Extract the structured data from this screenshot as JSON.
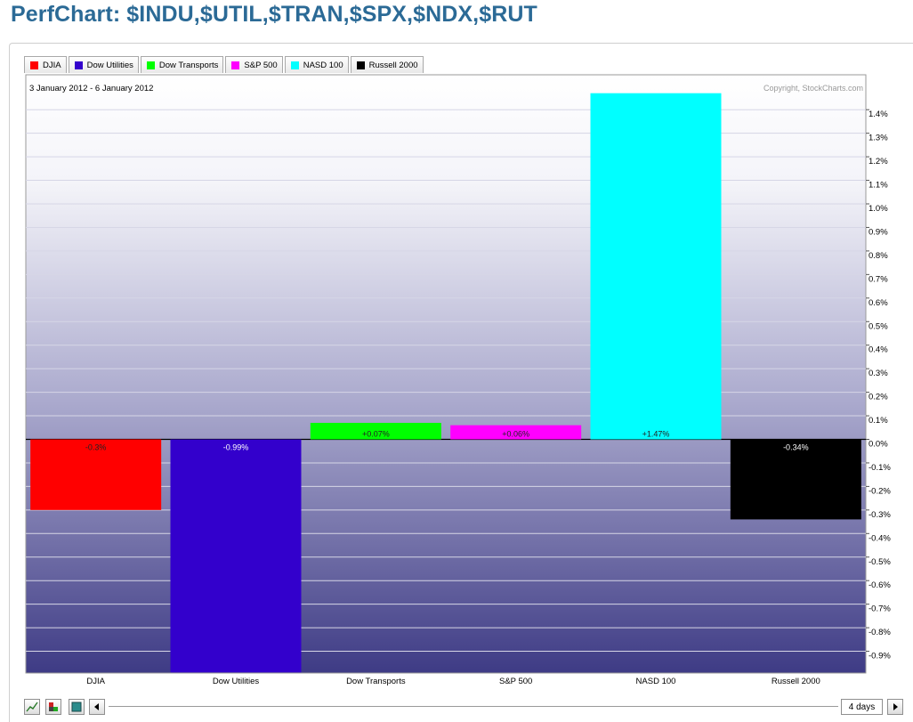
{
  "page": {
    "title": "PerfChart: $INDU,$UTIL,$TRAN,$SPX,$NDX,$RUT"
  },
  "legend": [
    {
      "label": "DJIA",
      "color": "#ff0000"
    },
    {
      "label": "Dow Utilities",
      "color": "#3300cc"
    },
    {
      "label": "Dow Transports",
      "color": "#00ff00"
    },
    {
      "label": "S&P 500",
      "color": "#ff00ff"
    },
    {
      "label": "NASD 100",
      "color": "#00ffff"
    },
    {
      "label": "Russell 2000",
      "color": "#000000"
    }
  ],
  "chart_data": {
    "type": "bar",
    "date_range": "3 January 2012 - 6 January 2012",
    "copyright": "Copyright, StockCharts.com",
    "categories": [
      "DJIA",
      "Dow Utilities",
      "Dow Transports",
      "S&P 500",
      "NASD 100",
      "Russell 2000"
    ],
    "values": [
      -0.3,
      -0.99,
      0.07,
      0.06,
      1.47,
      -0.34
    ],
    "value_labels": [
      "-0.3%",
      "-0.99%",
      "+0.07%",
      "+0.06%",
      "+1.47%",
      "-0.34%"
    ],
    "colors": [
      "#ff0000",
      "#3300cc",
      "#00ff00",
      "#ff00ff",
      "#00ffff",
      "#000000"
    ],
    "ylim": [
      -1.0,
      1.5
    ],
    "yticks": [
      -0.9,
      -0.8,
      -0.7,
      -0.6,
      -0.5,
      -0.4,
      -0.3,
      -0.2,
      -0.1,
      0.0,
      0.1,
      0.2,
      0.3,
      0.4,
      0.5,
      0.6,
      0.7,
      0.8,
      0.9,
      1.0,
      1.1,
      1.2,
      1.3,
      1.4
    ],
    "ytick_labels": [
      "-0.9%",
      "-0.8%",
      "-0.7%",
      "-0.6%",
      "-0.5%",
      "-0.4%",
      "-0.3%",
      "-0.2%",
      "-0.1%",
      "0.0%",
      "0.1%",
      "0.2%",
      "0.3%",
      "0.4%",
      "0.5%",
      "0.6%",
      "0.7%",
      "0.8%",
      "0.9%",
      "1.0%",
      "1.1%",
      "1.2%",
      "1.3%",
      "1.4%"
    ],
    "grid": true,
    "legend_position": "top-left"
  },
  "toolbar": {
    "period": "4 days",
    "icons": [
      "line-chart-icon",
      "bar-chart-icon",
      "histogram-icon",
      "scroll-left-icon",
      "scroll-right-icon"
    ]
  }
}
